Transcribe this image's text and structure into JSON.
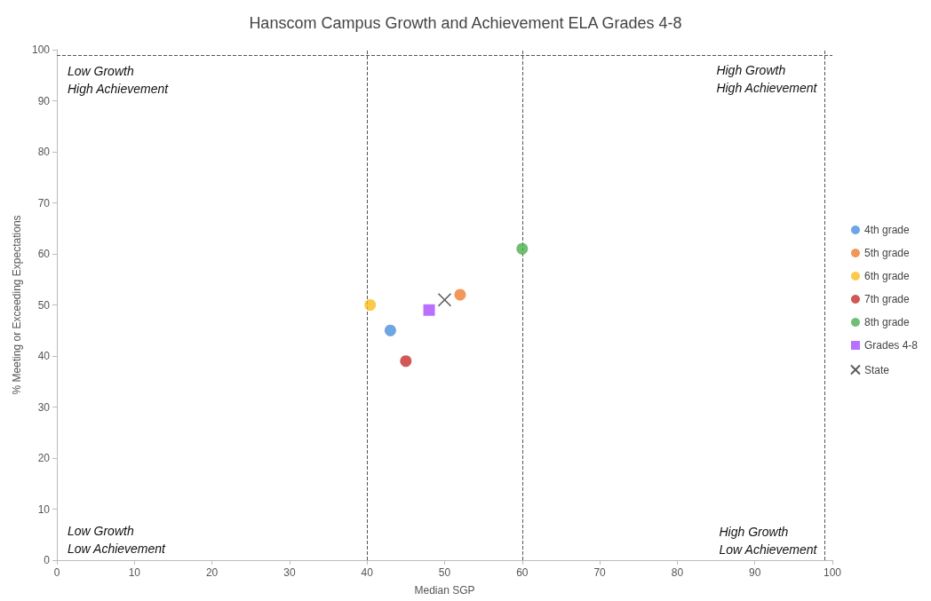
{
  "chart_data": {
    "type": "scatter",
    "title": "Hanscom Campus Growth and Achievement ELA Grades 4-8",
    "xlabel": "Median SGP",
    "ylabel": "% Meeting or Exceeding Expectations",
    "xlim": [
      0,
      100
    ],
    "xticks": [
      0,
      10,
      20,
      30,
      40,
      50,
      60,
      70,
      80,
      90,
      100
    ],
    "ylim": [
      0,
      100
    ],
    "yticks": [
      0,
      10,
      20,
      30,
      40,
      50,
      60,
      70,
      80,
      90,
      100
    ],
    "grid": false,
    "legend": "right",
    "marker": "circle",
    "series": [
      {
        "name": "4th grade",
        "color": "#4a90d9",
        "x": [
          43
        ],
        "values": [
          45
        ]
      },
      {
        "name": "5th grade",
        "color": "#ed7d31",
        "x": [
          52
        ],
        "values": [
          52
        ]
      },
      {
        "name": "6th grade",
        "color": "#fbbc1c",
        "x": [
          40.4
        ],
        "values": [
          50
        ]
      },
      {
        "name": "7th grade",
        "color": "#c5302b",
        "x": [
          45
        ],
        "values": [
          39
        ]
      },
      {
        "name": "8th grade",
        "color": "#4caf50",
        "x": [
          60
        ],
        "values": [
          61
        ]
      },
      {
        "name": "Grades 4-8",
        "color": "#a64dff",
        "x": [
          48
        ],
        "values": [
          49
        ],
        "marker": "square"
      },
      {
        "name": "State",
        "color": "#333333",
        "x": [
          50
        ],
        "values": [
          51
        ],
        "marker": "cross"
      }
    ],
    "ref_lines": [
      {
        "axis": "x",
        "value": 40,
        "line_style": "dashed",
        "color": "#555555"
      },
      {
        "axis": "x",
        "value": 60,
        "line_style": "dashed",
        "color": "#555555"
      },
      {
        "axis": "x",
        "value": 99,
        "line_style": "dashed",
        "color": "#555555"
      },
      {
        "axis": "y",
        "value": 99,
        "line_style": "dashed",
        "color": "#555555"
      }
    ],
    "annotations": [
      "Low Growth\nHigh Achievement",
      "High Growth\nHigh Achievement",
      "Low Growth\nLow Achievement",
      "High Growth\nLow Achievement"
    ]
  }
}
